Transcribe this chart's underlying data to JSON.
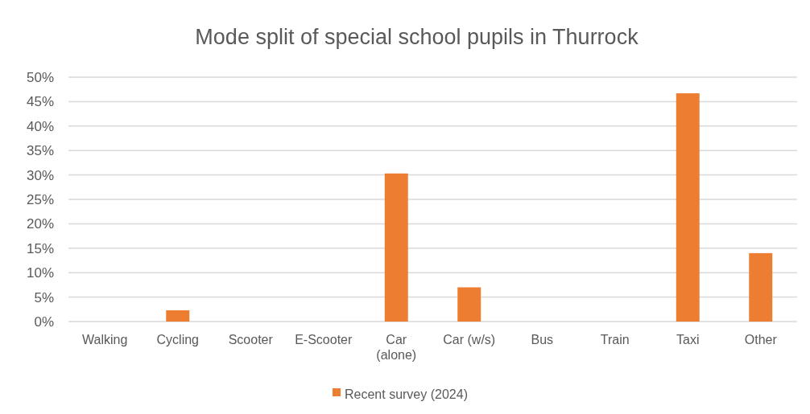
{
  "chart_data": {
    "type": "bar",
    "title": "Mode split of special school pupils in Thurrock",
    "categories": [
      "Walking",
      "Cycling",
      "Scooter",
      "E-Scooter",
      "Car (alone)",
      "Car (w/s)",
      "Bus",
      "Train",
      "Taxi",
      "Other"
    ],
    "series": [
      {
        "name": "Recent survey (2024)",
        "color": "#ed7d31",
        "values": [
          0,
          2.3,
          0,
          0,
          30.3,
          7.0,
          0,
          0,
          46.7,
          14.0
        ]
      }
    ],
    "ylim": [
      0,
      50
    ],
    "yticks": [
      {
        "value": 0,
        "label": "0%"
      },
      {
        "value": 5,
        "label": "5%"
      },
      {
        "value": 10,
        "label": "10%"
      },
      {
        "value": 15,
        "label": "15%"
      },
      {
        "value": 20,
        "label": "20%"
      },
      {
        "value": 25,
        "label": "25%"
      },
      {
        "value": 30,
        "label": "30%"
      },
      {
        "value": 35,
        "label": "35%"
      },
      {
        "value": 40,
        "label": "40%"
      },
      {
        "value": 45,
        "label": "45%"
      },
      {
        "value": 50,
        "label": "50%"
      }
    ],
    "grid": "y",
    "legend": "bottom"
  }
}
